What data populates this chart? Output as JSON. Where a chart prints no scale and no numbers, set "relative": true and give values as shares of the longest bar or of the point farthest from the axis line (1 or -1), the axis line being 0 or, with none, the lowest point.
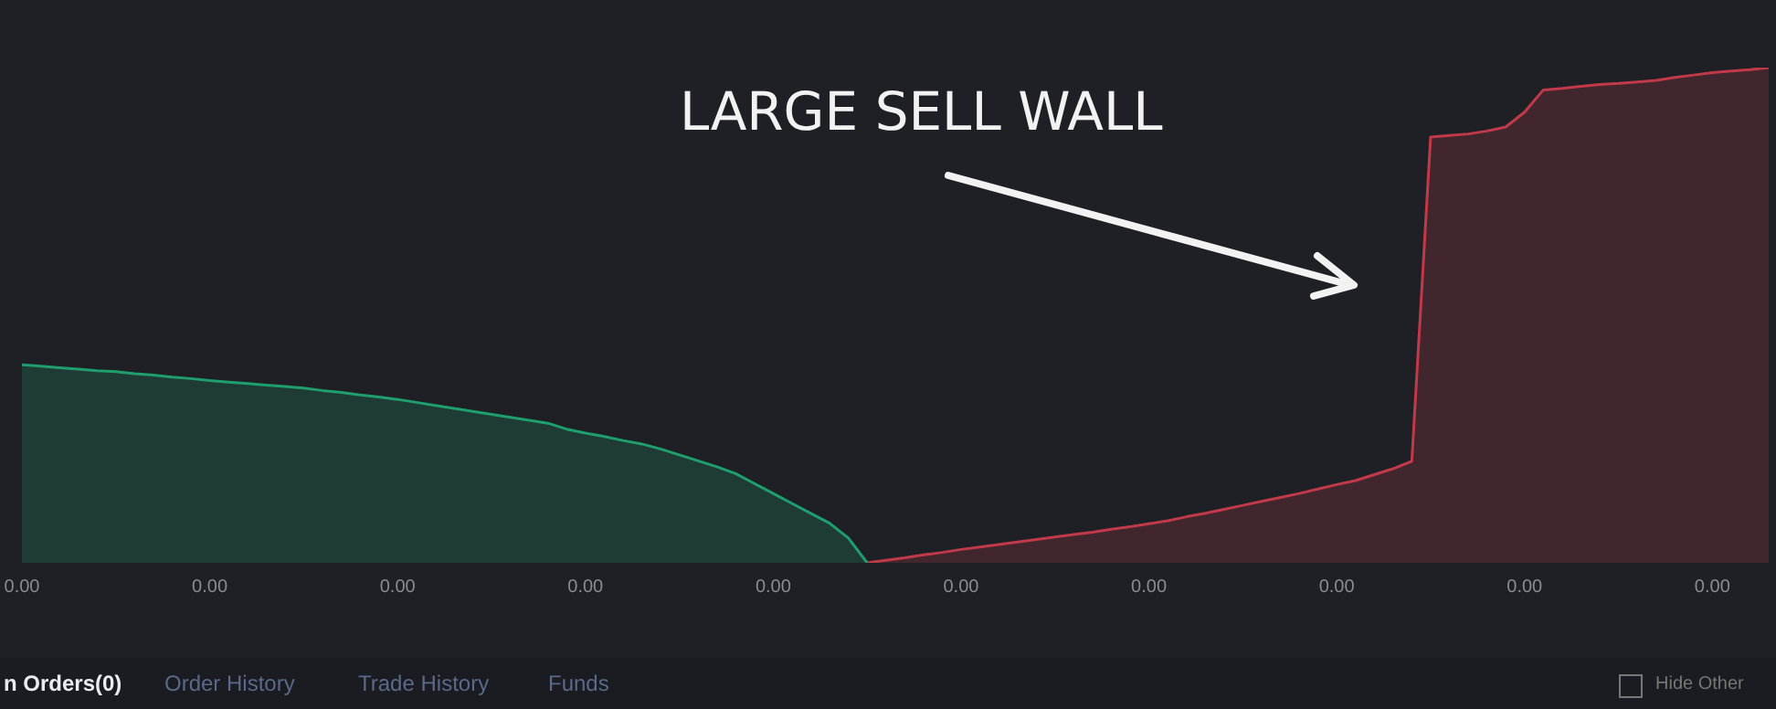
{
  "chart_data": {
    "type": "area",
    "relative": true,
    "grid": false,
    "legend": false,
    "categories": [
      null,
      null,
      null,
      null,
      null,
      null,
      null,
      null,
      null,
      null,
      null,
      null,
      null,
      null,
      null,
      null,
      null,
      null,
      null,
      null,
      null,
      null,
      null,
      null,
      null,
      null,
      null,
      null,
      null,
      null,
      null,
      null,
      null,
      null,
      null,
      null,
      null,
      null,
      null,
      null,
      null,
      null,
      null,
      null,
      null,
      null,
      null,
      null,
      null,
      null,
      null,
      null,
      null,
      null,
      null,
      null,
      null,
      null,
      null,
      null,
      null,
      null,
      null,
      null,
      null,
      null,
      null,
      null,
      null,
      null,
      null,
      null,
      null,
      null,
      null,
      null,
      null,
      null,
      null,
      null,
      null,
      null,
      null,
      null,
      null,
      null,
      null,
      null,
      null,
      null,
      null,
      null,
      null,
      null
    ],
    "series": [
      {
        "color": "#1f9e6e",
        "values": [
          0.4,
          0.397,
          0.394,
          0.391,
          0.388,
          0.386,
          0.382,
          0.379,
          0.375,
          0.372,
          0.368,
          0.365,
          0.362,
          0.359,
          0.356,
          0.353,
          0.348,
          0.344,
          0.339,
          0.335,
          0.33,
          0.324,
          0.318,
          0.312,
          0.306,
          0.3,
          0.294,
          0.288,
          0.282,
          0.27,
          0.262,
          0.255,
          0.247,
          0.24,
          0.23,
          0.218,
          0.206,
          0.194,
          0.18,
          0.16,
          0.14,
          0.12,
          0.1,
          0.08,
          0.05,
          0,
          null,
          null,
          null,
          null,
          null,
          null,
          null,
          null,
          null,
          null,
          null,
          null,
          null,
          null,
          null,
          null,
          null,
          null,
          null,
          null,
          null,
          null,
          null,
          null,
          null,
          null,
          null,
          null,
          null,
          null,
          null,
          null,
          null,
          null,
          null,
          null,
          null,
          null,
          null,
          null,
          null,
          null,
          null,
          null,
          null,
          null,
          null,
          null
        ]
      },
      {
        "color": "#c23a4a",
        "values": [
          null,
          null,
          null,
          null,
          null,
          null,
          null,
          null,
          null,
          null,
          null,
          null,
          null,
          null,
          null,
          null,
          null,
          null,
          null,
          null,
          null,
          null,
          null,
          null,
          null,
          null,
          null,
          null,
          null,
          null,
          null,
          null,
          null,
          null,
          null,
          null,
          null,
          null,
          null,
          null,
          null,
          null,
          null,
          null,
          null,
          0,
          0.005,
          0.01,
          0.016,
          0.021,
          0.027,
          0.032,
          0.037,
          0.042,
          0.047,
          0.052,
          0.057,
          0.062,
          0.068,
          0.073,
          0.079,
          0.085,
          0.093,
          0.1,
          0.108,
          0.116,
          0.124,
          0.132,
          0.14,
          0.149,
          0.158,
          0.166,
          0.178,
          0.19,
          0.205,
          0.86,
          0.863,
          0.866,
          0.872,
          0.88,
          0.91,
          0.955,
          0.958,
          0.962,
          0.966,
          0.968,
          0.971,
          0.974,
          0.98,
          0.985,
          0.99,
          0.993,
          0.996,
          1
        ]
      }
    ],
    "annotations": [
      "LARGE SELL WALL",
      "n Orders(0)",
      "Order History",
      "Trade History",
      "Funds",
      "Hide Other",
      "0.00",
      "0.00",
      "0.00",
      "0.00",
      "0.00",
      "0.00",
      "0.00",
      "0.00",
      "0.00",
      "0.00"
    ]
  }
}
